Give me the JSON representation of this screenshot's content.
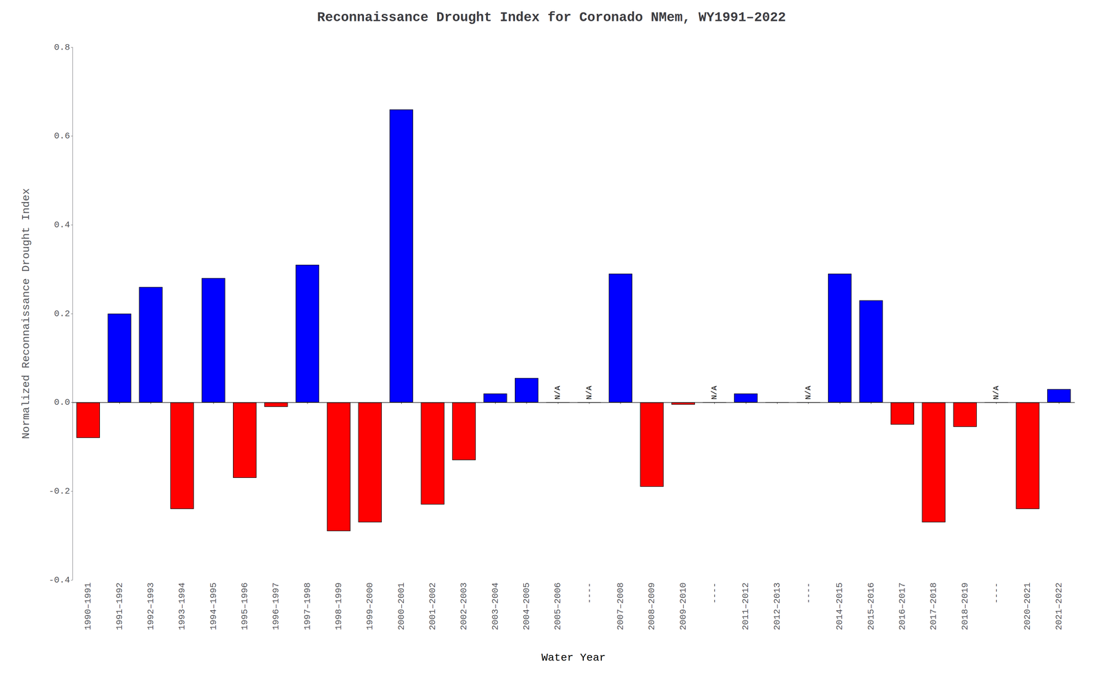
{
  "chart_data": {
    "type": "bar",
    "title": "Reconnaissance Drought Index for Coronado NMem, WY1991–2022",
    "xlabel": "Water Year",
    "ylabel": "Normalized Reconnaissance Drought Index",
    "categories": [
      "1990–1991",
      "1991–1992",
      "1992–1993",
      "1993–1994",
      "1994–1995",
      "1995–1996",
      "1996–1997",
      "1997–1998",
      "1998–1999",
      "1999–2000",
      "2000–2001",
      "2001–2002",
      "2002–2003",
      "2003–2004",
      "2004–2005",
      "2005–2006",
      "----",
      "2007–2008",
      "2008–2009",
      "2009–2010",
      "----",
      "2011–2012",
      "2012–2013",
      "----",
      "2014–2015",
      "2015–2016",
      "2016–2017",
      "2017–2018",
      "2018–2019",
      "----",
      "2020–2021",
      "2021–2022"
    ],
    "values": [
      -0.08,
      0.2,
      0.26,
      -0.24,
      0.28,
      -0.17,
      -0.01,
      0.31,
      -0.29,
      -0.27,
      0.66,
      -0.23,
      -0.13,
      0.02,
      0.055,
      0.0,
      0.0,
      0.29,
      -0.19,
      -0.005,
      0.0,
      0.02,
      0.0,
      0.0,
      0.29,
      0.23,
      -0.05,
      -0.27,
      -0.055,
      0.0,
      -0.24,
      0.03
    ],
    "colors": [
      "#ff0000",
      "#0000ff",
      "#0000ff",
      "#ff0000",
      "#0000ff",
      "#ff0000",
      "#ff0000",
      "#0000ff",
      "#ff0000",
      "#ff0000",
      "#0000ff",
      "#ff0000",
      "#ff0000",
      "#0000ff",
      "#0000ff",
      "#0000ff",
      "#0000ff",
      "#0000ff",
      "#ff0000",
      "#ff0000",
      "#0000ff",
      "#0000ff",
      "#0000ff",
      "#0000ff",
      "#0000ff",
      "#0000ff",
      "#ff0000",
      "#ff0000",
      "#ff0000",
      "#0000ff",
      "#ff0000",
      "#0000ff"
    ],
    "annotations": [
      {
        "text": "N/A",
        "index": 15
      },
      {
        "text": "N/A",
        "index": 16
      },
      {
        "text": "N/A",
        "index": 20
      },
      {
        "text": "N/A",
        "index": 23
      },
      {
        "text": "N/A",
        "index": 29
      }
    ],
    "ylim": [
      -0.4,
      0.8
    ],
    "yticks": [
      -0.4,
      -0.2,
      {
        "value": 0.0,
        "label": "0.0"
      },
      0.2,
      0.4,
      0.6,
      0.8
    ],
    "grid": false
  }
}
